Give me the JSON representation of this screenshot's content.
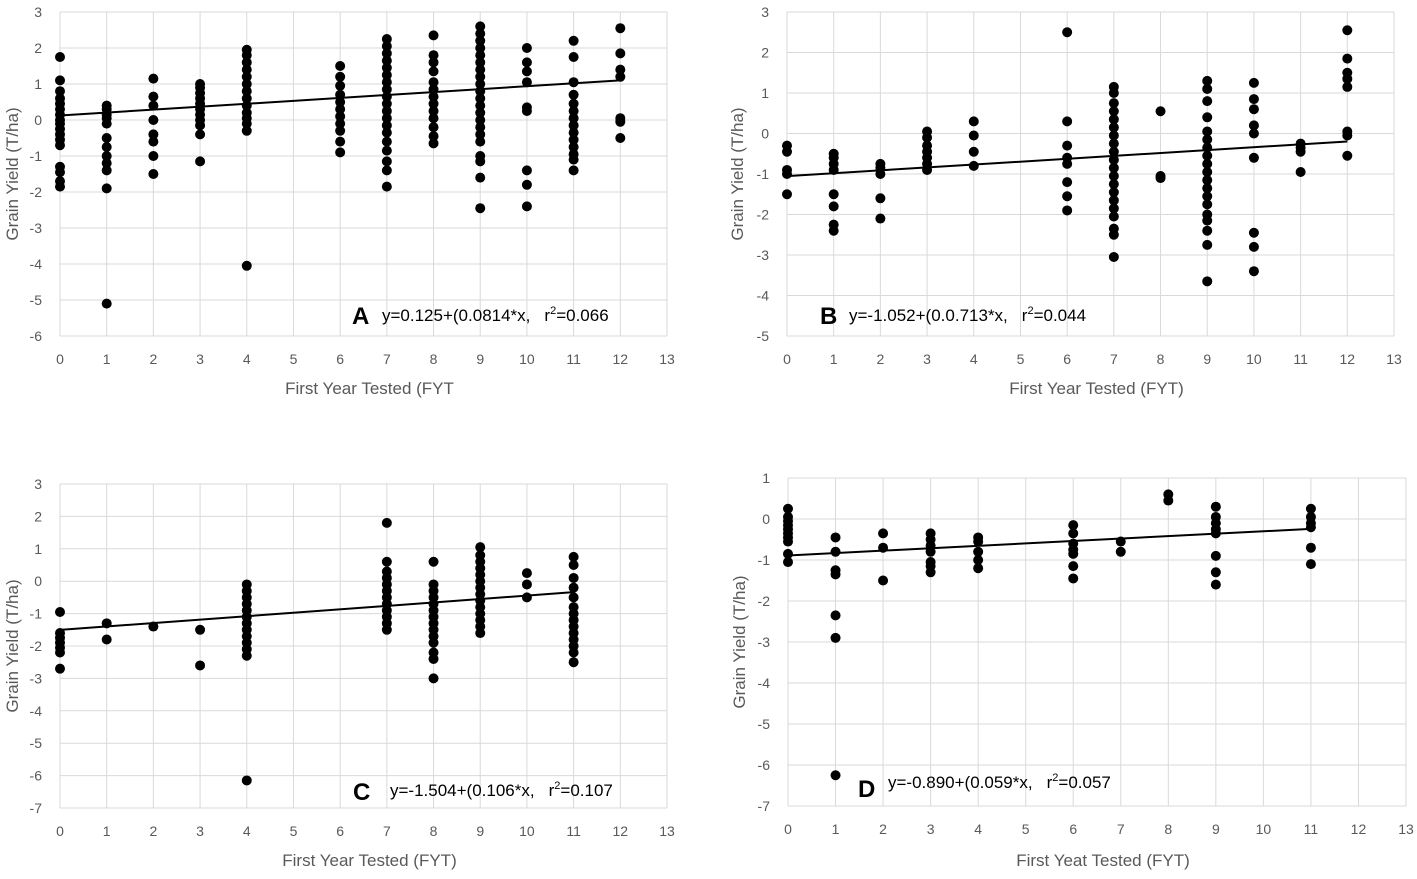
{
  "figure": {
    "layout": "2x2 grid of scatter plots with linear trendlines"
  },
  "chart_data": [
    {
      "panel": "A",
      "type": "scatter",
      "xlabel": "First Year Tested (FYT",
      "ylabel": "Grain Yield (T/ha)",
      "xlim": [
        0,
        13
      ],
      "ylim": [
        -6,
        3
      ],
      "xticks": [
        "0",
        "1",
        "2",
        "3",
        "4",
        "5",
        "6",
        "7",
        "8",
        "9",
        "10",
        "11",
        "12",
        "13"
      ],
      "yticks": [
        "-6",
        "-5",
        "-4",
        "-3",
        "-2",
        "-1",
        "0",
        "1",
        "2",
        "3"
      ],
      "grid": true,
      "trend": {
        "intercept": 0.125,
        "slope": 0.0814,
        "x_range": [
          0,
          12
        ]
      },
      "equation": {
        "letter": "A",
        "text": "y=0.125+(0.0814*x,",
        "r2_label": "r",
        "r2_sup": "2",
        "r2_value": "=0.066"
      },
      "series": [
        {
          "x": 0,
          "y": [
            1.75,
            1.1,
            0.8,
            0.6,
            0.45,
            0.3,
            0.15,
            0.0,
            -0.1,
            -0.25,
            -0.4,
            -0.55,
            -0.7,
            -1.3,
            -1.45,
            -1.7,
            -1.85
          ]
        },
        {
          "x": 1,
          "y": [
            0.4,
            0.3,
            0.15,
            0.05,
            -0.1,
            -0.5,
            -0.75,
            -1.0,
            -1.2,
            -1.4,
            -1.9,
            -5.1
          ]
        },
        {
          "x": 2,
          "y": [
            1.15,
            0.65,
            0.4,
            0.0,
            -0.4,
            -0.6,
            -1.0,
            -1.5
          ]
        },
        {
          "x": 3,
          "y": [
            1.0,
            0.9,
            0.75,
            0.6,
            0.45,
            0.3,
            0.15,
            0.0,
            -0.15,
            -0.4,
            -1.15
          ]
        },
        {
          "x": 4,
          "y": [
            1.95,
            1.8,
            1.6,
            1.4,
            1.2,
            1.0,
            0.8,
            0.6,
            0.4,
            0.2,
            0.05,
            -0.1,
            -0.3,
            -4.05
          ]
        },
        {
          "x": 6,
          "y": [
            1.5,
            1.2,
            0.95,
            0.7,
            0.5,
            0.3,
            0.1,
            -0.1,
            -0.3,
            -0.6,
            -0.9
          ]
        },
        {
          "x": 7,
          "y": [
            2.25,
            2.05,
            1.85,
            1.65,
            1.45,
            1.25,
            1.05,
            0.85,
            0.65,
            0.45,
            0.25,
            0.05,
            -0.15,
            -0.35,
            -0.6,
            -0.85,
            -1.15,
            -1.4,
            -1.85
          ]
        },
        {
          "x": 8,
          "y": [
            2.35,
            1.8,
            1.6,
            1.35,
            1.05,
            0.85,
            0.65,
            0.45,
            0.25,
            0.05,
            -0.2,
            -0.45,
            -0.65
          ]
        },
        {
          "x": 9,
          "y": [
            2.6,
            2.4,
            2.2,
            2.0,
            1.8,
            1.6,
            1.4,
            1.2,
            1.0,
            0.8,
            0.6,
            0.4,
            0.2,
            0.0,
            -0.2,
            -0.4,
            -0.6,
            -1.0,
            -1.15,
            -1.6,
            -2.45
          ]
        },
        {
          "x": 10,
          "y": [
            2.0,
            1.6,
            1.35,
            1.05,
            0.35,
            0.25,
            -1.4,
            -1.8,
            -2.4
          ]
        },
        {
          "x": 11,
          "y": [
            2.2,
            1.75,
            1.05,
            0.7,
            0.45,
            0.25,
            0.05,
            -0.15,
            -0.35,
            -0.55,
            -0.75,
            -0.95,
            -1.1,
            -1.4
          ]
        },
        {
          "x": 12,
          "y": [
            2.55,
            1.85,
            1.4,
            1.2,
            0.05,
            -0.05,
            -0.5
          ]
        }
      ]
    },
    {
      "panel": "B",
      "type": "scatter",
      "xlabel": "First Year Tested (FYT)",
      "ylabel": "Grain Yield (T/ha)",
      "xlim": [
        0,
        13
      ],
      "ylim": [
        -5,
        3
      ],
      "xticks": [
        "0",
        "1",
        "2",
        "3",
        "4",
        "5",
        "6",
        "7",
        "8",
        "9",
        "10",
        "11",
        "12",
        "13"
      ],
      "yticks": [
        "-5",
        "-4",
        "-3",
        "-2",
        "-1",
        "0",
        "1",
        "2",
        "3"
      ],
      "grid": true,
      "trend": {
        "intercept": -1.052,
        "slope": 0.0713,
        "x_range": [
          0,
          12
        ]
      },
      "equation": {
        "letter": "B",
        "text": "y=-1.052+(0.0.713*x,",
        "r2_label": "r",
        "r2_sup": "2",
        "r2_value": "=0.044"
      },
      "series": [
        {
          "x": 0,
          "y": [
            -0.3,
            -0.45,
            -0.9,
            -1.0,
            -1.5
          ]
        },
        {
          "x": 1,
          "y": [
            -0.5,
            -0.6,
            -0.75,
            -0.9,
            -1.5,
            -1.8,
            -2.25,
            -2.4
          ]
        },
        {
          "x": 2,
          "y": [
            -0.75,
            -0.85,
            -1.0,
            -1.6,
            -2.1
          ]
        },
        {
          "x": 3,
          "y": [
            0.05,
            -0.1,
            -0.3,
            -0.45,
            -0.6,
            -0.75,
            -0.9
          ]
        },
        {
          "x": 4,
          "y": [
            0.3,
            -0.05,
            -0.45,
            -0.8
          ]
        },
        {
          "x": 6,
          "y": [
            2.5,
            0.3,
            -0.3,
            -0.6,
            -0.75,
            -1.2,
            -1.55,
            -1.9
          ]
        },
        {
          "x": 7,
          "y": [
            1.15,
            1.0,
            0.75,
            0.55,
            0.35,
            0.15,
            -0.05,
            -0.25,
            -0.45,
            -0.65,
            -0.85,
            -1.05,
            -1.25,
            -1.45,
            -1.65,
            -1.85,
            -2.05,
            -2.35,
            -2.5,
            -3.05
          ]
        },
        {
          "x": 8,
          "y": [
            0.55,
            -1.05,
            -1.1
          ]
        },
        {
          "x": 9,
          "y": [
            1.3,
            1.1,
            0.8,
            0.4,
            0.05,
            -0.15,
            -0.35,
            -0.55,
            -0.75,
            -0.95,
            -1.15,
            -1.35,
            -1.55,
            -1.75,
            -2.0,
            -2.15,
            -2.4,
            -2.75,
            -3.65
          ]
        },
        {
          "x": 10,
          "y": [
            1.25,
            0.85,
            0.6,
            0.2,
            0.0,
            -0.6,
            -2.45,
            -2.8,
            -3.4
          ]
        },
        {
          "x": 11,
          "y": [
            -0.25,
            -0.35,
            -0.45,
            -0.95
          ]
        },
        {
          "x": 12,
          "y": [
            2.55,
            1.85,
            1.5,
            1.35,
            1.15,
            0.05,
            -0.05,
            -0.55
          ]
        }
      ]
    },
    {
      "panel": "C",
      "type": "scatter",
      "xlabel": "First Year Tested (FYT)",
      "ylabel": "Grain Yield (T/ha)",
      "xlim": [
        0,
        13
      ],
      "ylim": [
        -7,
        3
      ],
      "xticks": [
        "0",
        "1",
        "2",
        "3",
        "4",
        "5",
        "6",
        "7",
        "8",
        "9",
        "10",
        "11",
        "12",
        "13"
      ],
      "yticks": [
        "-7",
        "-6",
        "-5",
        "-4",
        "-3",
        "-2",
        "-1",
        "0",
        "1",
        "2",
        "3"
      ],
      "grid": true,
      "trend": {
        "intercept": -1.504,
        "slope": 0.106,
        "x_range": [
          0,
          11
        ]
      },
      "equation": {
        "letter": "C",
        "text": "y=-1.504+(0.106*x,",
        "r2_label": "r",
        "r2_sup": "2",
        "r2_value": "=0.107"
      },
      "series": [
        {
          "x": 0,
          "y": [
            -0.95,
            -1.6,
            -1.75,
            -1.9,
            -2.05,
            -2.2,
            -2.7
          ]
        },
        {
          "x": 1,
          "y": [
            -1.3,
            -1.8
          ]
        },
        {
          "x": 2,
          "y": [
            -1.4
          ]
        },
        {
          "x": 3,
          "y": [
            -1.5,
            -2.6
          ]
        },
        {
          "x": 4,
          "y": [
            -0.1,
            -0.3,
            -0.5,
            -0.7,
            -0.9,
            -1.1,
            -1.3,
            -1.5,
            -1.7,
            -1.9,
            -2.1,
            -2.3,
            -6.15
          ]
        },
        {
          "x": 7,
          "y": [
            1.8,
            0.6,
            0.3,
            0.1,
            -0.1,
            -0.3,
            -0.5,
            -0.7,
            -0.9,
            -1.1,
            -1.3,
            -1.5
          ]
        },
        {
          "x": 8,
          "y": [
            0.6,
            -0.1,
            -0.3,
            -0.5,
            -0.7,
            -0.9,
            -1.1,
            -1.3,
            -1.5,
            -1.7,
            -1.9,
            -2.2,
            -2.4,
            -3.0
          ]
        },
        {
          "x": 9,
          "y": [
            1.05,
            0.8,
            0.6,
            0.4,
            0.2,
            0.0,
            -0.2,
            -0.4,
            -0.6,
            -0.8,
            -1.0,
            -1.2,
            -1.4,
            -1.6
          ]
        },
        {
          "x": 10,
          "y": [
            0.25,
            -0.1,
            -0.5
          ]
        },
        {
          "x": 11,
          "y": [
            0.75,
            0.5,
            0.1,
            -0.2,
            -0.5,
            -0.8,
            -1.0,
            -1.2,
            -1.4,
            -1.6,
            -1.8,
            -2.0,
            -2.2,
            -2.5
          ]
        }
      ]
    },
    {
      "panel": "D",
      "type": "scatter",
      "xlabel": "First Yeat Tested (FYT)",
      "ylabel": "Grain Yield (T/ha)",
      "xlim": [
        0,
        13
      ],
      "ylim": [
        -7,
        1
      ],
      "xticks": [
        "0",
        "1",
        "2",
        "3",
        "4",
        "5",
        "6",
        "7",
        "8",
        "9",
        "10",
        "11",
        "12",
        "13"
      ],
      "yticks": [
        "-7",
        "-6",
        "-5",
        "-4",
        "-3",
        "-2",
        "-1",
        "0",
        "1"
      ],
      "grid": true,
      "trend": {
        "intercept": -0.89,
        "slope": 0.059,
        "x_range": [
          0,
          11
        ]
      },
      "equation": {
        "letter": "D",
        "text": "y=-0.890+(0.059*x,",
        "r2_label": "r",
        "r2_sup": "2",
        "r2_value": "=0.057"
      },
      "series": [
        {
          "x": 0,
          "y": [
            0.25,
            0.05,
            -0.05,
            -0.15,
            -0.25,
            -0.35,
            -0.45,
            -0.55,
            -0.85,
            -1.05
          ]
        },
        {
          "x": 1,
          "y": [
            -0.45,
            -0.8,
            -1.25,
            -1.35,
            -2.35,
            -2.9,
            -6.25
          ]
        },
        {
          "x": 2,
          "y": [
            -0.35,
            -0.7,
            -1.5
          ]
        },
        {
          "x": 3,
          "y": [
            -0.35,
            -0.5,
            -0.65,
            -0.8,
            -1.05,
            -1.15,
            -1.3
          ]
        },
        {
          "x": 4,
          "y": [
            -0.45,
            -0.55,
            -0.8,
            -1.0,
            -1.2
          ]
        },
        {
          "x": 6,
          "y": [
            -0.15,
            -0.35,
            -0.6,
            -0.75,
            -0.85,
            -1.15,
            -1.45
          ]
        },
        {
          "x": 7,
          "y": [
            -0.55,
            -0.8
          ]
        },
        {
          "x": 8,
          "y": [
            0.6,
            0.45
          ]
        },
        {
          "x": 9,
          "y": [
            0.3,
            0.05,
            -0.1,
            -0.25,
            -0.35,
            -0.9,
            -1.3,
            -1.6
          ]
        },
        {
          "x": 11,
          "y": [
            0.25,
            0.05,
            -0.1,
            -0.2,
            -0.7,
            -1.1
          ]
        }
      ]
    }
  ]
}
